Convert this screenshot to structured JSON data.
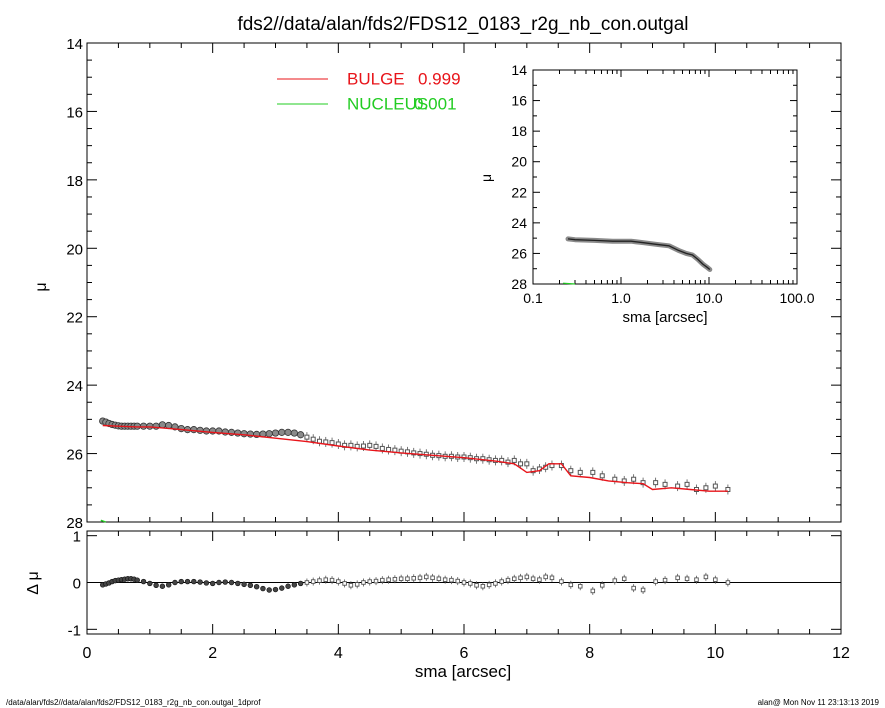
{
  "title": "fds2//data/alan/fds2/FDS12_0183_r2g_nb_con.outgal",
  "footer": {
    "left": "/data/alan/fds2//data/alan/fds2/FDS12_0183_r2g_nb_con.outgal_1dprof",
    "right": "alan@  Mon Nov 11 23:13:13 2019"
  },
  "colors": {
    "bulge": "#e8141a",
    "nucleus": "#22cc22",
    "data": "#555555",
    "axis": "#000000"
  },
  "chart_data": [
    {
      "type": "scatter",
      "panel": "main",
      "xlabel": "sma [arcsec]",
      "ylabel": "μ",
      "xlim": [
        0,
        12
      ],
      "ylim": [
        28,
        14
      ],
      "y_reversed": true,
      "xticks": [
        0,
        2,
        4,
        6,
        8,
        10,
        12
      ],
      "yticks": [
        14,
        16,
        18,
        20,
        22,
        24,
        26,
        28
      ],
      "legend": {
        "placement": "top-left",
        "entries": [
          {
            "label": "BULGE",
            "value": "0.999",
            "color": "#e8141a"
          },
          {
            "label": "NUCLEUS",
            "value": "0.001",
            "color": "#22cc22"
          }
        ]
      },
      "series": [
        {
          "kind": "points",
          "x": [
            0.25,
            0.3,
            0.35,
            0.4,
            0.45,
            0.5,
            0.55,
            0.6,
            0.65,
            0.7,
            0.75,
            0.8,
            0.9,
            1.0,
            1.1,
            1.2,
            1.3,
            1.4,
            1.5,
            1.6,
            1.7,
            1.8,
            1.9,
            2.0,
            2.1,
            2.2,
            2.3,
            2.4,
            2.5,
            2.6,
            2.7,
            2.8,
            2.9,
            3.0,
            3.1,
            3.2,
            3.3,
            3.4,
            3.5,
            3.6,
            3.7,
            3.8,
            3.9,
            4.0,
            4.1,
            4.2,
            4.3,
            4.4,
            4.5,
            4.6,
            4.7,
            4.8,
            4.9,
            5.0,
            5.1,
            5.2,
            5.3,
            5.4,
            5.5,
            5.6,
            5.7,
            5.8,
            5.9,
            6.0,
            6.1,
            6.2,
            6.3,
            6.4,
            6.5,
            6.6,
            6.7,
            6.8,
            6.9,
            7.0,
            7.1,
            7.2,
            7.3,
            7.4,
            7.55,
            7.7,
            7.85,
            8.05,
            8.2,
            8.4,
            8.55,
            8.7,
            8.85,
            9.05,
            9.2,
            9.4,
            9.55,
            9.7,
            9.85,
            10.0,
            10.2
          ],
          "values": [
            25.05,
            25.08,
            25.12,
            25.15,
            25.17,
            25.19,
            25.2,
            25.2,
            25.2,
            25.2,
            25.2,
            25.2,
            25.2,
            25.2,
            25.2,
            25.16,
            25.18,
            25.22,
            25.27,
            25.3,
            25.3,
            25.32,
            25.34,
            25.34,
            25.34,
            25.37,
            25.38,
            25.4,
            25.42,
            25.43,
            25.44,
            25.43,
            25.42,
            25.4,
            25.38,
            25.38,
            25.4,
            25.45,
            25.52,
            25.58,
            25.64,
            25.66,
            25.68,
            25.72,
            25.76,
            25.76,
            25.79,
            25.78,
            25.76,
            25.79,
            25.85,
            25.88,
            25.9,
            25.93,
            25.95,
            25.98,
            26.0,
            26.02,
            26.05,
            26.06,
            26.08,
            26.08,
            26.1,
            26.1,
            26.12,
            26.15,
            26.15,
            26.18,
            26.2,
            26.2,
            26.25,
            26.2,
            26.3,
            26.3,
            26.5,
            26.45,
            26.4,
            26.35,
            26.35,
            26.5,
            26.55,
            26.55,
            26.65,
            26.75,
            26.8,
            26.75,
            26.85,
            26.85,
            26.9,
            26.95,
            26.9,
            27.05,
            27.0,
            26.95,
            27.05
          ]
        },
        {
          "kind": "line",
          "name": "BULGE",
          "color": "#e8141a",
          "x": [
            0.25,
            0.5,
            0.8,
            1.0,
            1.2,
            1.5,
            2.0,
            2.5,
            3.0,
            3.5,
            4.0,
            4.5,
            5.0,
            5.5,
            6.0,
            6.5,
            6.8,
            7.0,
            7.2,
            7.35,
            7.55,
            7.7,
            8.0,
            8.3,
            8.6,
            8.85,
            9.0,
            9.3,
            9.6,
            9.9,
            10.2
          ],
          "values": [
            25.18,
            25.2,
            25.22,
            25.22,
            25.25,
            25.3,
            25.38,
            25.45,
            25.55,
            25.65,
            25.78,
            25.9,
            25.98,
            26.05,
            26.12,
            26.22,
            26.3,
            26.55,
            26.5,
            26.3,
            26.3,
            26.65,
            26.7,
            26.8,
            26.85,
            26.88,
            27.05,
            27.0,
            27.05,
            27.1,
            27.1
          ]
        },
        {
          "kind": "line",
          "name": "NUCLEUS",
          "color": "#22cc22",
          "x": [
            0.22,
            0.3
          ],
          "values": [
            27.95,
            28.0
          ]
        }
      ]
    },
    {
      "type": "scatter",
      "panel": "residuals",
      "xlabel": "",
      "ylabel": "Δ μ",
      "xlim": [
        0,
        12
      ],
      "ylim": [
        -1.1,
        1.1
      ],
      "yticks": [
        -1,
        0,
        1
      ],
      "zero_line": true,
      "x": [
        0.25,
        0.3,
        0.35,
        0.4,
        0.45,
        0.5,
        0.55,
        0.6,
        0.65,
        0.7,
        0.75,
        0.8,
        0.9,
        1.0,
        1.1,
        1.2,
        1.3,
        1.4,
        1.5,
        1.6,
        1.7,
        1.8,
        1.9,
        2.0,
        2.1,
        2.2,
        2.3,
        2.4,
        2.5,
        2.6,
        2.7,
        2.8,
        2.9,
        3.0,
        3.1,
        3.2,
        3.3,
        3.4,
        3.5,
        3.6,
        3.7,
        3.8,
        3.9,
        4.0,
        4.1,
        4.2,
        4.3,
        4.4,
        4.5,
        4.6,
        4.7,
        4.8,
        4.9,
        5.0,
        5.1,
        5.2,
        5.3,
        5.4,
        5.5,
        5.6,
        5.7,
        5.8,
        5.9,
        6.0,
        6.1,
        6.2,
        6.3,
        6.4,
        6.5,
        6.6,
        6.7,
        6.8,
        6.9,
        7.0,
        7.1,
        7.2,
        7.3,
        7.4,
        7.55,
        7.7,
        7.85,
        8.05,
        8.2,
        8.4,
        8.55,
        8.7,
        8.85,
        9.05,
        9.2,
        9.4,
        9.55,
        9.7,
        9.85,
        10.0,
        10.2
      ],
      "values": [
        -0.05,
        -0.03,
        -0.01,
        0.02,
        0.04,
        0.05,
        0.06,
        0.07,
        0.08,
        0.08,
        0.07,
        0.05,
        0.02,
        -0.02,
        -0.06,
        -0.08,
        -0.05,
        0.0,
        0.02,
        0.02,
        0.02,
        0.01,
        -0.01,
        -0.02,
        0.0,
        0.01,
        0.0,
        -0.02,
        -0.04,
        -0.06,
        -0.09,
        -0.13,
        -0.16,
        -0.15,
        -0.12,
        -0.08,
        -0.05,
        -0.02,
        0.0,
        0.02,
        0.04,
        0.06,
        0.05,
        0.02,
        -0.02,
        -0.06,
        -0.04,
        0.0,
        0.02,
        0.03,
        0.05,
        0.06,
        0.07,
        0.08,
        0.08,
        0.09,
        0.1,
        0.12,
        0.1,
        0.08,
        0.06,
        0.05,
        0.03,
        0.0,
        -0.02,
        -0.06,
        -0.08,
        -0.05,
        -0.02,
        0.02,
        0.05,
        0.08,
        0.1,
        0.12,
        0.08,
        0.06,
        0.12,
        0.1,
        0.02,
        -0.05,
        -0.08,
        -0.18,
        -0.06,
        0.04,
        0.08,
        -0.12,
        -0.16,
        0.02,
        0.05,
        0.1,
        0.08,
        0.06,
        0.12,
        0.06,
        0.0
      ]
    },
    {
      "type": "line",
      "panel": "inset",
      "xlabel": "sma [arcsec]",
      "ylabel": "μ",
      "xscale": "log",
      "xlim": [
        0.1,
        100.0
      ],
      "ylim": [
        28,
        14
      ],
      "y_reversed": true,
      "xtick_labels": [
        "0.1",
        "1.0",
        "10.0",
        "100.0"
      ],
      "yticks": [
        14,
        16,
        18,
        20,
        22,
        24,
        26,
        28
      ],
      "series": [
        {
          "kind": "band",
          "x": [
            0.25,
            0.3,
            0.5,
            0.8,
            1.0,
            1.3,
            1.8,
            2.5,
            3.5,
            4.5,
            5.5,
            6.5,
            7.5,
            8.5,
            9.5,
            10.2
          ],
          "values": [
            25.05,
            25.1,
            25.15,
            25.2,
            25.2,
            25.2,
            25.3,
            25.4,
            25.5,
            25.8,
            26.0,
            26.1,
            26.4,
            26.7,
            26.9,
            27.05
          ]
        },
        {
          "kind": "line",
          "name": "NUCLEUS",
          "color": "#22cc22",
          "x": [
            0.22,
            0.3
          ],
          "values": [
            27.95,
            28.0
          ]
        }
      ]
    }
  ]
}
